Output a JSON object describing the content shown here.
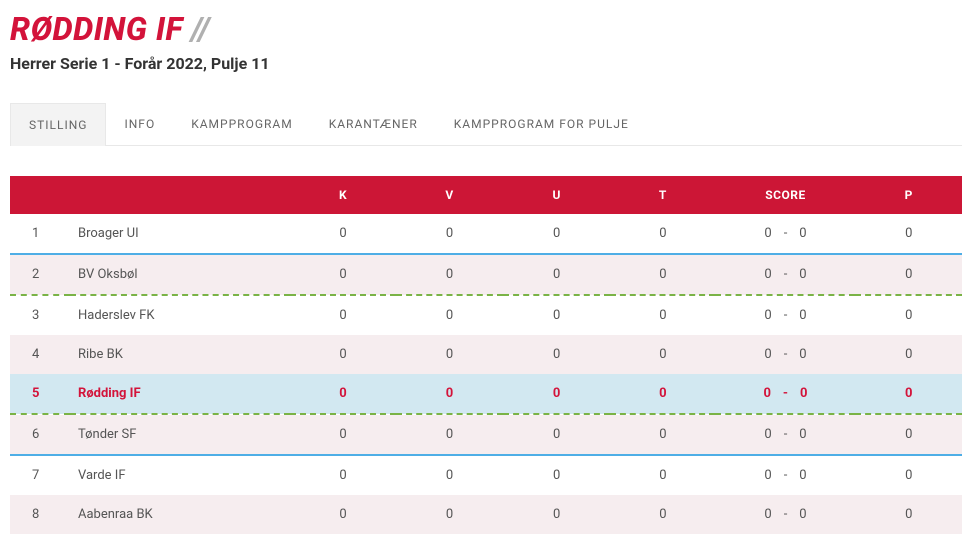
{
  "title": "RØDDING IF",
  "title_slash": "//",
  "subtitle": "Herrer Serie 1 - Forår 2022, Pulje 11",
  "tabs": [
    {
      "label": "STILLING",
      "active": true
    },
    {
      "label": "INFO",
      "active": false
    },
    {
      "label": "KAMPPROGRAM",
      "active": false
    },
    {
      "label": "KARANTÆNER",
      "active": false
    },
    {
      "label": "KAMPPROGRAM FOR PULJE",
      "active": false
    }
  ],
  "table": {
    "headers": {
      "k": "K",
      "v": "V",
      "u": "U",
      "t": "T",
      "score": "SCORE",
      "p": "P"
    },
    "rows": [
      {
        "pos": "1",
        "team": "Broager UI",
        "k": "0",
        "v": "0",
        "u": "0",
        "t": "0",
        "s1": "0",
        "s2": "0",
        "p": "0",
        "even": false,
        "highlight": false
      },
      {
        "pos": "2",
        "team": "BV Oksbøl",
        "k": "0",
        "v": "0",
        "u": "0",
        "t": "0",
        "s1": "0",
        "s2": "0",
        "p": "0",
        "even": true,
        "highlight": false
      },
      {
        "pos": "3",
        "team": "Haderslev FK",
        "k": "0",
        "v": "0",
        "u": "0",
        "t": "0",
        "s1": "0",
        "s2": "0",
        "p": "0",
        "even": false,
        "highlight": false
      },
      {
        "pos": "4",
        "team": "Ribe BK",
        "k": "0",
        "v": "0",
        "u": "0",
        "t": "0",
        "s1": "0",
        "s2": "0",
        "p": "0",
        "even": true,
        "highlight": false
      },
      {
        "pos": "5",
        "team": "Rødding IF",
        "k": "0",
        "v": "0",
        "u": "0",
        "t": "0",
        "s1": "0",
        "s2": "0",
        "p": "0",
        "even": false,
        "highlight": true
      },
      {
        "pos": "6",
        "team": "Tønder SF",
        "k": "0",
        "v": "0",
        "u": "0",
        "t": "0",
        "s1": "0",
        "s2": "0",
        "p": "0",
        "even": true,
        "highlight": false
      },
      {
        "pos": "7",
        "team": "Varde IF",
        "k": "0",
        "v": "0",
        "u": "0",
        "t": "0",
        "s1": "0",
        "s2": "0",
        "p": "0",
        "even": false,
        "highlight": false
      },
      {
        "pos": "8",
        "team": "Aabenraa BK",
        "k": "0",
        "v": "0",
        "u": "0",
        "t": "0",
        "s1": "0",
        "s2": "0",
        "p": "0",
        "even": true,
        "highlight": false
      }
    ],
    "separators": {
      "1": "solid",
      "2": "dashed",
      "5": "dashed",
      "6": "solid"
    }
  }
}
